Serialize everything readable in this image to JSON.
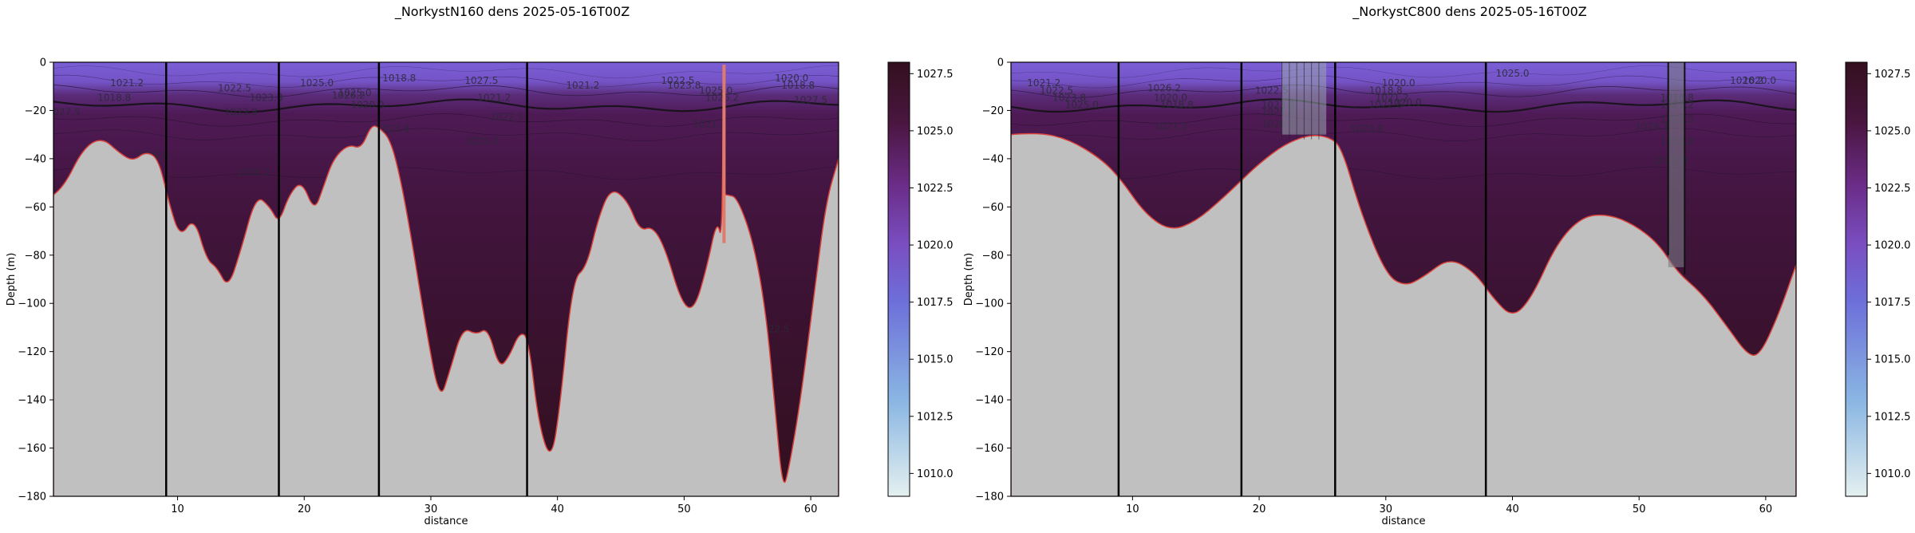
{
  "figure": {
    "panels": [
      {
        "title": "_NorkystN160 dens 2025-05-16T00Z"
      },
      {
        "title": "_NorkystC800 dens 2025-05-16T00Z"
      }
    ]
  },
  "chart_data": [
    {
      "type": "heatmap",
      "title": "_NorkystN160 dens 2025-05-16T00Z",
      "xlabel": "distance",
      "ylabel": "Depth (m)",
      "xlim": [
        0.2,
        62.2
      ],
      "ylim": [
        -180,
        0
      ],
      "x_ticks": [
        10,
        20,
        30,
        40,
        50,
        60
      ],
      "y_ticks": [
        0,
        -20,
        -40,
        -60,
        -80,
        -100,
        -120,
        -140,
        -160,
        -180
      ],
      "colorbar": {
        "range": [
          1009.0,
          1028.0
        ],
        "ticks": [
          "1010.0",
          "1012.5",
          "1015.0",
          "1017.5",
          "1020.0",
          "1022.5",
          "1025.0",
          "1027.5"
        ]
      },
      "section_dividers": [
        9.1,
        18.0,
        25.9,
        37.6
      ],
      "bottom_profile": {
        "x": [
          0.2,
          1.0,
          2.5,
          4.0,
          5.5,
          6.5,
          7.5,
          8.5,
          9.3,
          10.2,
          11.3,
          12.3,
          13.1,
          14.0,
          15.0,
          16.2,
          17.3,
          18.0,
          18.8,
          19.8,
          20.8,
          21.5,
          22.3,
          23.5,
          24.5,
          25.3,
          25.9,
          26.8,
          27.6,
          28.5,
          29.6,
          30.7,
          31.5,
          32.5,
          33.6,
          34.5,
          35.4,
          36.2,
          37.0,
          37.7,
          38.5,
          39.5,
          40.2,
          41.2,
          42.3,
          43.2,
          44.2,
          45.5,
          46.5,
          47.5,
          48.5,
          49.8,
          50.8,
          51.8,
          52.6,
          53.0,
          53.1,
          53.15,
          53.4,
          54.2,
          55.5,
          56.5,
          57.2,
          57.8,
          58.3,
          59.2,
          60.3,
          61.2,
          62.2
        ],
        "y": [
          -55,
          -52,
          -36,
          -31,
          -38,
          -41,
          -37,
          -40,
          -58,
          -73,
          -64,
          -82,
          -85,
          -94,
          -78,
          -55,
          -60,
          -67,
          -55,
          -49,
          -62,
          -52,
          -40,
          -34,
          -36,
          -26,
          -27,
          -32,
          -48,
          -74,
          -110,
          -141,
          -128,
          -110,
          -113,
          -110,
          -127,
          -122,
          -112,
          -114,
          -150,
          -166,
          -143,
          -90,
          -85,
          -65,
          -52,
          -57,
          -70,
          -68,
          -77,
          -100,
          -103,
          -85,
          -65,
          -75,
          -1,
          -55,
          -55,
          -56,
          -75,
          -105,
          -145,
          -178,
          -168,
          -140,
          -95,
          -58,
          -40
        ]
      },
      "contour_labels": [
        "1021.2",
        "1022.5",
        "1023.8",
        "1025.0",
        "1026.2",
        "1020.0",
        "1018.8",
        "1027.5"
      ]
    },
    {
      "type": "heatmap",
      "title": "_NorkystC800 dens 2025-05-16T00Z",
      "xlabel": "distance",
      "ylabel": "Depth (m)",
      "xlim": [
        0.4,
        62.4
      ],
      "ylim": [
        -180,
        0
      ],
      "x_ticks": [
        10,
        20,
        30,
        40,
        50,
        60
      ],
      "y_ticks": [
        0,
        -20,
        -40,
        -60,
        -80,
        -100,
        -120,
        -140,
        -160,
        -180
      ],
      "colorbar": {
        "range": [
          1009.0,
          1028.0
        ],
        "ticks": [
          "1010.0",
          "1012.5",
          "1015.0",
          "1017.5",
          "1020.0",
          "1022.5",
          "1025.0",
          "1027.5"
        ]
      },
      "section_dividers": [
        8.9,
        18.6,
        26.0,
        37.9
      ],
      "bottom_profile": {
        "x": [
          0.4,
          2.5,
          5.0,
          7.5,
          9.0,
          11.0,
          13.0,
          15.0,
          17.0,
          18.6,
          20.0,
          22.0,
          24.0,
          25.5,
          26.5,
          28.0,
          30.0,
          31.5,
          33.0,
          35.0,
          37.0,
          38.5,
          40.0,
          41.5,
          43.5,
          45.5,
          47.5,
          49.5,
          51.5,
          53.0,
          55.0,
          57.0,
          58.5,
          59.5,
          61.0,
          62.4
        ],
        "y": [
          -30,
          -29,
          -32,
          -40,
          -48,
          -63,
          -70,
          -66,
          -57,
          -49,
          -42,
          -34,
          -30,
          -31,
          -35,
          -62,
          -88,
          -93,
          -89,
          -81,
          -87,
          -98,
          -106,
          -98,
          -75,
          -64,
          -63,
          -67,
          -75,
          -87,
          -96,
          -110,
          -121,
          -122,
          -105,
          -84
        ]
      },
      "contour_labels": [
        "1021.2",
        "1022.5",
        "1023.8",
        "1025.0",
        "1026.2",
        "1020.0",
        "1018.8"
      ]
    }
  ]
}
